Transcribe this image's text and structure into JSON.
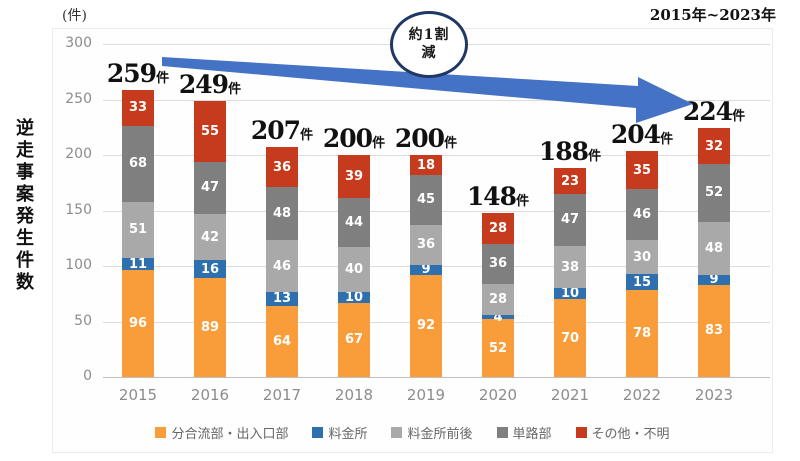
{
  "header": {
    "unit_label": "(件)",
    "period_label": "2015年~2023年"
  },
  "y_axis": {
    "title": "逆走事案発生件数"
  },
  "annotation": {
    "line1": "約1割",
    "line2": "減",
    "circle_border_color": "#1f3864",
    "arrow_color": "#4472c4"
  },
  "chart_data": {
    "type": "bar",
    "stacked": true,
    "title": "逆走事案発生件数 2015年~2023年",
    "ylabel": "逆走事案発生件数",
    "unit": "件",
    "grid": true,
    "legend_position": "bottom",
    "ylim": [
      0,
      300
    ],
    "y_ticks": [
      0,
      50,
      100,
      150,
      200,
      250,
      300
    ],
    "categories": [
      "2015",
      "2016",
      "2017",
      "2018",
      "2019",
      "2020",
      "2021",
      "2022",
      "2023"
    ],
    "series": [
      {
        "name": "分合流部・出入口部",
        "color": "#f99d3b",
        "values": [
          96,
          89,
          64,
          67,
          92,
          52,
          70,
          78,
          83
        ]
      },
      {
        "name": "料金所",
        "color": "#2e6fad",
        "values": [
          11,
          16,
          13,
          10,
          9,
          4,
          10,
          15,
          9
        ]
      },
      {
        "name": "料金所前後",
        "color": "#a9a9a9",
        "values": [
          51,
          42,
          46,
          40,
          36,
          28,
          38,
          30,
          48
        ]
      },
      {
        "name": "単路部",
        "color": "#7f7f7f",
        "values": [
          68,
          47,
          48,
          44,
          45,
          36,
          47,
          46,
          52
        ]
      },
      {
        "name": "その他・不明",
        "color": "#c63a1d",
        "values": [
          33,
          55,
          36,
          39,
          18,
          28,
          23,
          35,
          32
        ]
      }
    ],
    "totals": [
      259,
      249,
      207,
      200,
      200,
      148,
      188,
      204,
      224
    ],
    "total_suffix": "件"
  }
}
